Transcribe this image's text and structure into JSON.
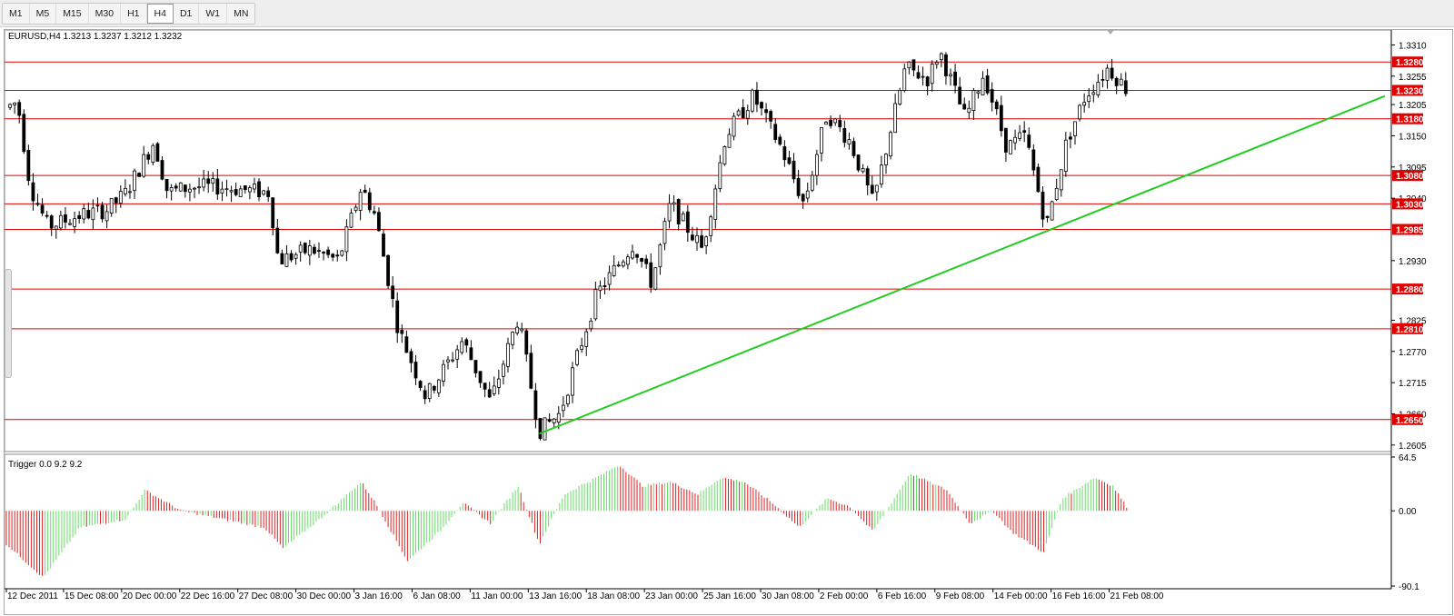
{
  "timeframes": [
    {
      "label": "M1",
      "active": false
    },
    {
      "label": "M5",
      "active": false
    },
    {
      "label": "M15",
      "active": false
    },
    {
      "label": "M30",
      "active": false
    },
    {
      "label": "H1",
      "active": false
    },
    {
      "label": "H4",
      "active": true
    },
    {
      "label": "D1",
      "active": false
    },
    {
      "label": "W1",
      "active": false
    },
    {
      "label": "MN",
      "active": false
    }
  ],
  "main_chart": {
    "header": "EURUSD,H4  1.3213 1.3237 1.3212 1.3232",
    "price_labels": [
      "1.3310",
      "1.3255",
      "1.3205",
      "1.3150",
      "1.3095",
      "1.3040",
      "1.2930",
      "1.2825",
      "1.2770",
      "1.2715",
      "1.2660",
      "1.2605"
    ],
    "level_labels": [
      "1.3280",
      "1.3230",
      "1.3180",
      "1.3080",
      "1.3030",
      "1.2985",
      "1.2880",
      "1.2810",
      "1.2650"
    ]
  },
  "indicator": {
    "header": "Trigger 0.0 9.2 9.2",
    "scale_labels": [
      "64.5",
      "0.00",
      "-90.1"
    ]
  },
  "time_labels": [
    "12 Dec 2011",
    "15 Dec 08:00",
    "20 Dec 00:00",
    "22 Dec 16:00",
    "27 Dec 08:00",
    "30 Dec 00:00",
    "3 Jan 16:00",
    "6 Jan 08:00",
    "11 Jan 00:00",
    "13 Jan 16:00",
    "18 Jan 08:00",
    "23 Jan 00:00",
    "25 Jan 16:00",
    "30 Jan 08:00",
    "2 Feb 00:00",
    "6 Feb 16:00",
    "9 Feb 08:00",
    "14 Feb 00:00",
    "16 Feb 16:00",
    "21 Feb 08:00"
  ],
  "chart_data": {
    "type": "candlestick",
    "symbol": "EURUSD",
    "timeframe": "H4",
    "ohlc_last": {
      "open": 1.3213,
      "high": 1.3237,
      "low": 1.3212,
      "close": 1.3232
    },
    "ylim": [
      1.26,
      1.333
    ],
    "horizontal_levels": [
      1.328,
      1.323,
      1.318,
      1.308,
      1.303,
      1.2985,
      1.288,
      1.281,
      1.265
    ],
    "trendline": {
      "from": {
        "time": "13 Jan 16:00",
        "price": 1.2625
      },
      "to": {
        "price": 1.322
      }
    },
    "price_path": [
      {
        "t": 0,
        "p": 1.32
      },
      {
        "t": 12,
        "p": 1.321
      },
      {
        "t": 26,
        "p": 1.306
      },
      {
        "t": 45,
        "p": 1.299
      },
      {
        "t": 80,
        "p": 1.301
      },
      {
        "t": 110,
        "p": 1.302
      },
      {
        "t": 130,
        "p": 1.305
      },
      {
        "t": 160,
        "p": 1.314
      },
      {
        "t": 175,
        "p": 1.305
      },
      {
        "t": 200,
        "p": 1.306
      },
      {
        "t": 230,
        "p": 1.306
      },
      {
        "t": 285,
        "p": 1.305
      },
      {
        "t": 295,
        "p": 1.293
      },
      {
        "t": 330,
        "p": 1.295
      },
      {
        "t": 360,
        "p": 1.293
      },
      {
        "t": 385,
        "p": 1.306
      },
      {
        "t": 400,
        "p": 1.301
      },
      {
        "t": 425,
        "p": 1.281
      },
      {
        "t": 455,
        "p": 1.269
      },
      {
        "t": 495,
        "p": 1.279
      },
      {
        "t": 525,
        "p": 1.268
      },
      {
        "t": 555,
        "p": 1.283
      },
      {
        "t": 578,
        "p": 1.263
      },
      {
        "t": 600,
        "p": 1.266
      },
      {
        "t": 640,
        "p": 1.287
      },
      {
        "t": 680,
        "p": 1.296
      },
      {
        "t": 700,
        "p": 1.289
      },
      {
        "t": 720,
        "p": 1.303
      },
      {
        "t": 755,
        "p": 1.295
      },
      {
        "t": 780,
        "p": 1.315
      },
      {
        "t": 810,
        "p": 1.322
      },
      {
        "t": 840,
        "p": 1.313
      },
      {
        "t": 865,
        "p": 1.303
      },
      {
        "t": 890,
        "p": 1.319
      },
      {
        "t": 915,
        "p": 1.314
      },
      {
        "t": 940,
        "p": 1.303
      },
      {
        "t": 975,
        "p": 1.327
      },
      {
        "t": 1000,
        "p": 1.325
      },
      {
        "t": 1012,
        "p": 1.33
      },
      {
        "t": 1040,
        "p": 1.318
      },
      {
        "t": 1060,
        "p": 1.326
      },
      {
        "t": 1085,
        "p": 1.313
      },
      {
        "t": 1105,
        "p": 1.315
      },
      {
        "t": 1128,
        "p": 1.299
      },
      {
        "t": 1150,
        "p": 1.314
      },
      {
        "t": 1170,
        "p": 1.322
      },
      {
        "t": 1195,
        "p": 1.327
      },
      {
        "t": 1215,
        "p": 1.3232
      }
    ],
    "indicator_series": {
      "name": "Trigger",
      "ylim": [
        -90.1,
        64.5
      ],
      "path": [
        {
          "t": 0,
          "v": -40
        },
        {
          "t": 40,
          "v": -80
        },
        {
          "t": 80,
          "v": -20
        },
        {
          "t": 130,
          "v": -10
        },
        {
          "t": 150,
          "v": 25
        },
        {
          "t": 190,
          "v": 0
        },
        {
          "t": 280,
          "v": -20
        },
        {
          "t": 300,
          "v": -45
        },
        {
          "t": 340,
          "v": -10
        },
        {
          "t": 385,
          "v": 35
        },
        {
          "t": 400,
          "v": 10
        },
        {
          "t": 435,
          "v": -60
        },
        {
          "t": 470,
          "v": -25
        },
        {
          "t": 495,
          "v": 10
        },
        {
          "t": 525,
          "v": -15
        },
        {
          "t": 555,
          "v": 30
        },
        {
          "t": 578,
          "v": -40
        },
        {
          "t": 605,
          "v": 20
        },
        {
          "t": 640,
          "v": 40
        },
        {
          "t": 665,
          "v": 55
        },
        {
          "t": 690,
          "v": 30
        },
        {
          "t": 720,
          "v": 35
        },
        {
          "t": 750,
          "v": 20
        },
        {
          "t": 775,
          "v": 40
        },
        {
          "t": 800,
          "v": 35
        },
        {
          "t": 830,
          "v": 10
        },
        {
          "t": 860,
          "v": -20
        },
        {
          "t": 890,
          "v": 15
        },
        {
          "t": 915,
          "v": 5
        },
        {
          "t": 940,
          "v": -25
        },
        {
          "t": 980,
          "v": 45
        },
        {
          "t": 1000,
          "v": 35
        },
        {
          "t": 1020,
          "v": 25
        },
        {
          "t": 1045,
          "v": -15
        },
        {
          "t": 1070,
          "v": 0
        },
        {
          "t": 1090,
          "v": -25
        },
        {
          "t": 1125,
          "v": -50
        },
        {
          "t": 1145,
          "v": 15
        },
        {
          "t": 1180,
          "v": 40
        },
        {
          "t": 1200,
          "v": 30
        },
        {
          "t": 1215,
          "v": 5
        }
      ]
    },
    "time_axis": [
      "12 Dec 2011",
      "15 Dec 08:00",
      "20 Dec 00:00",
      "22 Dec 16:00",
      "27 Dec 08:00",
      "30 Dec 00:00",
      "3 Jan 16:00",
      "6 Jan 08:00",
      "11 Jan 00:00",
      "13 Jan 16:00",
      "18 Jan 08:00",
      "23 Jan 00:00",
      "25 Jan 16:00",
      "30 Jan 08:00",
      "2 Feb 00:00",
      "6 Feb 16:00",
      "9 Feb 08:00",
      "14 Feb 00:00",
      "16 Feb 16:00",
      "21 Feb 08:00"
    ]
  },
  "colors": {
    "bull_candle": "#ffffff",
    "bear_candle": "#000000",
    "level_line": "#e00000",
    "trendline": "#22cc22",
    "osc_positive": "#66dd66",
    "osc_negative": "#dd2222"
  }
}
